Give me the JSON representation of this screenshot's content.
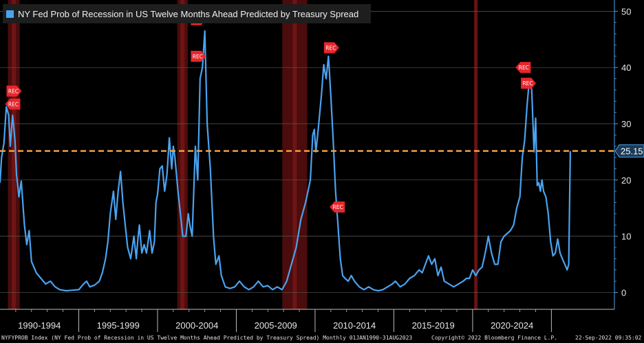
{
  "chart_data": {
    "type": "line",
    "title": "NY Fed Prob of Recession in US Twelve Months Ahead Predicted by Treasury Spread",
    "series": [
      {
        "name": "NY Fed Prob of Recession in US Twelve Months Ahead Predicted by Treasury Spread",
        "color": "#4aa3f0",
        "points": [
          [
            1990.0,
            19.5
          ],
          [
            1990.1,
            24.0
          ],
          [
            1990.25,
            26.5
          ],
          [
            1990.4,
            33.0
          ],
          [
            1990.55,
            31.5
          ],
          [
            1990.65,
            26.0
          ],
          [
            1990.8,
            31.5
          ],
          [
            1990.95,
            27.0
          ],
          [
            1991.05,
            21.0
          ],
          [
            1991.2,
            17.0
          ],
          [
            1991.35,
            19.8
          ],
          [
            1991.55,
            12.0
          ],
          [
            1991.7,
            8.5
          ],
          [
            1991.85,
            11.0
          ],
          [
            1992.0,
            5.5
          ],
          [
            1992.3,
            3.5
          ],
          [
            1992.6,
            2.5
          ],
          [
            1992.9,
            1.5
          ],
          [
            1993.2,
            2.0
          ],
          [
            1993.5,
            1.0
          ],
          [
            1993.8,
            0.5
          ],
          [
            1994.2,
            0.3
          ],
          [
            1994.6,
            0.4
          ],
          [
            1995.0,
            0.5
          ],
          [
            1995.3,
            1.5
          ],
          [
            1995.5,
            2.0
          ],
          [
            1995.7,
            1.0
          ],
          [
            1996.0,
            1.3
          ],
          [
            1996.3,
            2.0
          ],
          [
            1996.5,
            3.5
          ],
          [
            1996.7,
            6.0
          ],
          [
            1996.85,
            9.0
          ],
          [
            1997.0,
            14.0
          ],
          [
            1997.2,
            18.0
          ],
          [
            1997.35,
            13.0
          ],
          [
            1997.5,
            18.0
          ],
          [
            1997.65,
            21.5
          ],
          [
            1997.8,
            16.0
          ],
          [
            1997.95,
            12.0
          ],
          [
            1998.1,
            8.0
          ],
          [
            1998.3,
            6.0
          ],
          [
            1998.5,
            10.0
          ],
          [
            1998.65,
            6.0
          ],
          [
            1998.75,
            9.5
          ],
          [
            1998.85,
            12.0
          ],
          [
            1999.0,
            7.0
          ],
          [
            1999.15,
            8.5
          ],
          [
            1999.3,
            7.0
          ],
          [
            1999.5,
            11.0
          ],
          [
            1999.65,
            7.0
          ],
          [
            1999.8,
            9.0
          ],
          [
            1999.9,
            16.0
          ],
          [
            2000.0,
            17.5
          ],
          [
            2000.15,
            22.0
          ],
          [
            2000.3,
            22.5
          ],
          [
            2000.45,
            18.0
          ],
          [
            2000.6,
            21.0
          ],
          [
            2000.75,
            27.5
          ],
          [
            2000.9,
            22.0
          ],
          [
            2001.0,
            26.0
          ],
          [
            2001.1,
            24.0
          ],
          [
            2001.3,
            18.0
          ],
          [
            2001.45,
            14.0
          ],
          [
            2001.6,
            10.0
          ],
          [
            2001.8,
            10.0
          ],
          [
            2001.95,
            14.0
          ],
          [
            2002.05,
            12.0
          ],
          [
            2002.2,
            10.0
          ],
          [
            2002.4,
            26.0
          ],
          [
            2002.55,
            20.0
          ],
          [
            2002.7,
            38.0
          ],
          [
            2002.85,
            40.0
          ],
          [
            2003.0,
            46.5
          ],
          [
            2003.15,
            30.0
          ],
          [
            2003.35,
            22.0
          ],
          [
            2003.55,
            10.0
          ],
          [
            2003.7,
            5.0
          ],
          [
            2003.9,
            6.5
          ],
          [
            2004.05,
            3.0
          ],
          [
            2004.3,
            1.0
          ],
          [
            2004.6,
            0.7
          ],
          [
            2004.9,
            1.0
          ],
          [
            2005.2,
            2.0
          ],
          [
            2005.5,
            1.0
          ],
          [
            2005.8,
            0.5
          ],
          [
            2006.1,
            1.0
          ],
          [
            2006.4,
            2.0
          ],
          [
            2006.7,
            1.0
          ],
          [
            2007.0,
            1.2
          ],
          [
            2007.3,
            0.5
          ],
          [
            2007.6,
            1.0
          ],
          [
            2007.9,
            0.5
          ],
          [
            2008.2,
            2.0
          ],
          [
            2008.5,
            5.0
          ],
          [
            2008.8,
            8.0
          ],
          [
            2009.1,
            13.0
          ],
          [
            2009.4,
            16.0
          ],
          [
            2009.7,
            20.0
          ],
          [
            2009.85,
            28.0
          ],
          [
            2009.95,
            29.0
          ],
          [
            2010.05,
            25.0
          ],
          [
            2010.2,
            29.0
          ],
          [
            2010.4,
            35.0
          ],
          [
            2010.55,
            40.5
          ],
          [
            2010.7,
            38.0
          ],
          [
            2010.85,
            42.0
          ],
          [
            2011.0,
            35.0
          ],
          [
            2011.15,
            27.0
          ],
          [
            2011.3,
            18.0
          ],
          [
            2011.45,
            12.0
          ],
          [
            2011.6,
            6.0
          ],
          [
            2011.75,
            3.0
          ],
          [
            2011.9,
            2.5
          ],
          [
            2012.1,
            2.0
          ],
          [
            2012.3,
            3.0
          ],
          [
            2012.5,
            2.0
          ],
          [
            2012.8,
            1.0
          ],
          [
            2013.1,
            0.5
          ],
          [
            2013.4,
            1.0
          ],
          [
            2013.7,
            0.5
          ],
          [
            2014.0,
            0.3
          ],
          [
            2014.3,
            0.5
          ],
          [
            2014.6,
            1.0
          ],
          [
            2014.9,
            1.5
          ],
          [
            2015.1,
            2.0
          ],
          [
            2015.4,
            1.0
          ],
          [
            2015.7,
            1.5
          ],
          [
            2016.0,
            2.5
          ],
          [
            2016.3,
            3.0
          ],
          [
            2016.6,
            4.0
          ],
          [
            2016.8,
            3.5
          ],
          [
            2017.0,
            5.0
          ],
          [
            2017.2,
            6.5
          ],
          [
            2017.4,
            5.0
          ],
          [
            2017.6,
            6.0
          ],
          [
            2017.8,
            3.0
          ],
          [
            2018.0,
            4.5
          ],
          [
            2018.2,
            2.0
          ],
          [
            2018.5,
            1.5
          ],
          [
            2018.8,
            1.0
          ],
          [
            2019.1,
            1.5
          ],
          [
            2019.4,
            2.0
          ],
          [
            2019.6,
            2.5
          ],
          [
            2019.8,
            2.5
          ],
          [
            2020.0,
            4.0
          ],
          [
            2020.2,
            3.0
          ],
          [
            2020.4,
            4.0
          ],
          [
            2020.6,
            4.5
          ],
          [
            2020.8,
            7.0
          ],
          [
            2021.0,
            10.0
          ],
          [
            2021.2,
            7.0
          ],
          [
            2021.4,
            5.0
          ],
          [
            2021.6,
            5.0
          ],
          [
            2021.8,
            9.0
          ],
          [
            2022.0,
            10.0
          ],
          [
            2022.2,
            10.5
          ],
          [
            2022.4,
            11.0
          ],
          [
            2022.6,
            12.0
          ],
          [
            2022.8,
            15.0
          ],
          [
            2023.0,
            17.0
          ],
          [
            2023.15,
            24.0
          ],
          [
            2023.3,
            27.0
          ],
          [
            2023.45,
            33.0
          ],
          [
            2023.6,
            38.0
          ],
          [
            2023.75,
            36.0
          ],
          [
            2023.9,
            25.0
          ],
          [
            2024.0,
            31.0
          ],
          [
            2024.1,
            19.0
          ],
          [
            2024.2,
            19.5
          ],
          [
            2024.3,
            18.0
          ],
          [
            2024.4,
            20.0
          ],
          [
            2024.5,
            18.0
          ],
          [
            2024.65,
            17.0
          ],
          [
            2024.8,
            14.0
          ],
          [
            2024.95,
            9.0
          ],
          [
            2025.1,
            6.5
          ],
          [
            2025.25,
            7.0
          ],
          [
            2025.4,
            9.5
          ],
          [
            2025.55,
            7.0
          ],
          [
            2025.7,
            6.0
          ],
          [
            2025.85,
            5.0
          ],
          [
            2026.0,
            4.0
          ],
          [
            2026.1,
            5.0
          ],
          [
            2026.2,
            25.15
          ]
        ]
      }
    ],
    "recessions": [
      [
        1990.5,
        1991.25
      ],
      [
        2001.25,
        2001.92
      ],
      [
        2007.92,
        2009.5
      ],
      [
        2020.08,
        2020.33
      ]
    ],
    "rec_markers": [
      {
        "x": 1990.85,
        "y": 35.8,
        "label": "REC",
        "dir": "right"
      },
      {
        "x": 1990.85,
        "y": 33.5,
        "label": "REC",
        "dir": "left"
      },
      {
        "x": 2002.55,
        "y": 48.5,
        "label": "REC",
        "dir": "right"
      },
      {
        "x": 2002.55,
        "y": 42.0,
        "label": "REC",
        "dir": "right"
      },
      {
        "x": 2011.0,
        "y": 43.5,
        "label": "REC",
        "dir": "right"
      },
      {
        "x": 2011.45,
        "y": 15.2,
        "label": "REC",
        "dir": "left"
      },
      {
        "x": 2023.25,
        "y": 40.0,
        "label": "REC",
        "dir": "left"
      },
      {
        "x": 2023.5,
        "y": 37.2,
        "label": "REC",
        "dir": "right"
      }
    ],
    "reference_line": {
      "value": 25.15,
      "color": "#f0a040",
      "style": "dashed"
    },
    "last_value_label": "25.15",
    "xlim": [
      1990.0,
      2029.0
    ],
    "ylim": [
      -3,
      52
    ],
    "yticks": [
      0,
      10,
      20,
      30,
      40,
      50
    ],
    "ygrid": true,
    "x_periods": [
      {
        "label": "1990-1994",
        "start": 1990.0,
        "end": 1995.0
      },
      {
        "label": "1995-1999",
        "start": 1995.0,
        "end": 2000.0
      },
      {
        "label": "2000-2004",
        "start": 2000.0,
        "end": 2005.0
      },
      {
        "label": "2005-2009",
        "start": 2005.0,
        "end": 2010.0
      },
      {
        "label": "2010-2014",
        "start": 2010.0,
        "end": 2015.0
      },
      {
        "label": "2015-2019",
        "start": 2015.0,
        "end": 2020.0
      },
      {
        "label": "2020-2024",
        "start": 2020.0,
        "end": 2025.0
      }
    ],
    "legend": "top-left"
  },
  "footer": {
    "left": "NYFYPROB Index (NY Fed Prob of Recession in US Twelve Months Ahead Predicted by Treasury Spread)  Monthly 01JAN1990-31AUG2023",
    "center": "Copyright© 2022 Bloomberg Finance L.P.",
    "right": "22-Sep-2022 09:35:02"
  }
}
